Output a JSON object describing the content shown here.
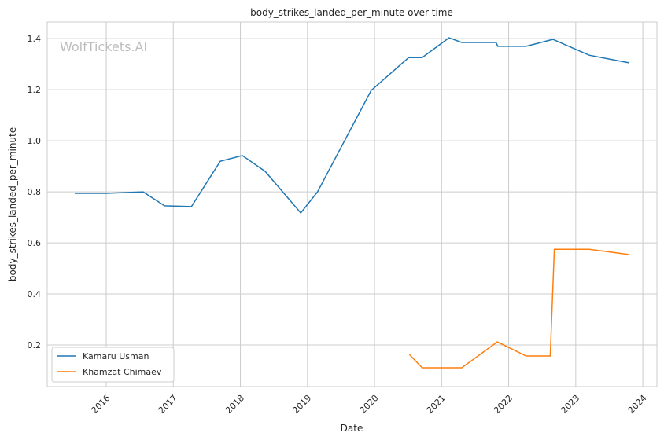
{
  "chart_data": {
    "type": "line",
    "title": "body_strikes_landed_per_minute over time",
    "xlabel": "Date",
    "ylabel": "body_strikes_landed_per_minute",
    "watermark": "WolfTickets.AI",
    "xlim": [
      2015.12,
      2024.21
    ],
    "ylim": [
      0.037,
      1.465
    ],
    "x_ticks": [
      2016,
      2017,
      2018,
      2019,
      2020,
      2021,
      2022,
      2023,
      2024
    ],
    "x_tick_labels": [
      "2016",
      "2017",
      "2018",
      "2019",
      "2020",
      "2021",
      "2022",
      "2023",
      "2024"
    ],
    "y_ticks": [
      0.2,
      0.4,
      0.6,
      0.8,
      1.0,
      1.2,
      1.4
    ],
    "y_tick_labels": [
      "0.2",
      "0.4",
      "0.6",
      "0.8",
      "1.0",
      "1.2",
      "1.4"
    ],
    "grid": true,
    "legend_position": "lower-left",
    "series": [
      {
        "name": "Kamaru Usman",
        "color": "#1f77b4",
        "x": [
          2015.53,
          2016.0,
          2016.55,
          2016.87,
          2017.27,
          2017.7,
          2018.03,
          2018.37,
          2018.9,
          2019.15,
          2019.95,
          2020.51,
          2020.71,
          2021.11,
          2021.3,
          2021.81,
          2021.84,
          2022.26,
          2022.66,
          2023.2,
          2023.8
        ],
        "values": [
          0.794,
          0.794,
          0.8,
          0.745,
          0.742,
          0.92,
          0.942,
          0.88,
          0.717,
          0.8,
          1.197,
          1.326,
          1.326,
          1.403,
          1.385,
          1.385,
          1.37,
          1.37,
          1.397,
          1.335,
          1.305
        ]
      },
      {
        "name": "Khamzat Chimaev",
        "color": "#ff7f0e",
        "x": [
          2020.52,
          2020.71,
          2021.3,
          2021.83,
          2022.26,
          2022.62,
          2022.68,
          2023.2,
          2023.8
        ],
        "values": [
          0.163,
          0.111,
          0.111,
          0.212,
          0.157,
          0.157,
          0.575,
          0.575,
          0.554
        ]
      }
    ]
  }
}
